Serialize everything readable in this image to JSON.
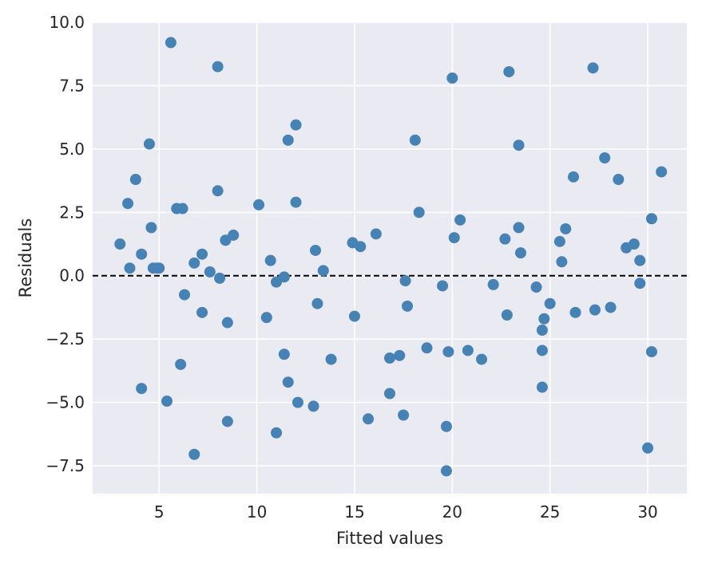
{
  "chart_data": {
    "type": "scatter",
    "title": "",
    "xlabel": "Fitted values",
    "ylabel": "Residuals",
    "xlim": [
      1.6,
      32.0
    ],
    "ylim": [
      -8.6,
      10.0
    ],
    "xticks": [
      5,
      10,
      15,
      20,
      25,
      30
    ],
    "yticks": [
      -7.5,
      -5.0,
      -2.5,
      0.0,
      2.5,
      5.0,
      7.5,
      10.0
    ],
    "xtick_labels": [
      "5",
      "10",
      "15",
      "20",
      "25",
      "30"
    ],
    "ytick_labels": [
      "−7.5",
      "−5.0",
      "−2.5",
      "0.0",
      "2.5",
      "5.0",
      "7.5",
      "10.0"
    ],
    "grid": true,
    "reference_line": {
      "y": 0,
      "style": "dashed",
      "color": "#000000"
    },
    "colors": {
      "background": "#eaeaf2",
      "grid": "#ffffff",
      "marker": "#4682b4"
    },
    "series": [
      {
        "x": [
          3.0,
          3.4,
          3.5,
          3.8,
          4.1,
          4.1,
          4.5,
          4.6,
          4.7,
          4.9,
          5.0,
          5.4,
          5.6,
          5.9,
          6.1,
          6.2,
          6.3,
          6.8,
          6.8,
          7.2,
          7.2,
          7.6,
          8.0,
          8.0,
          8.1,
          8.4,
          8.5,
          8.5,
          8.8,
          10.1,
          10.5,
          10.7,
          11.0,
          11.0,
          11.4,
          11.4,
          11.6,
          11.6,
          12.0,
          12.0,
          12.1,
          12.9,
          13.0,
          13.1,
          13.4,
          13.8,
          14.9,
          15.0,
          15.3,
          15.7,
          16.1,
          16.8,
          16.8,
          17.3,
          17.5,
          17.6,
          17.7,
          18.1,
          18.3,
          18.7,
          19.5,
          19.7,
          19.7,
          19.8,
          20.0,
          20.1,
          20.4,
          20.8,
          21.5,
          22.1,
          22.7,
          22.8,
          22.9,
          23.4,
          23.4,
          23.5,
          24.3,
          24.6,
          24.6,
          24.6,
          24.7,
          25.0,
          25.5,
          25.6,
          25.8,
          26.2,
          26.3,
          27.2,
          27.3,
          27.8,
          28.1,
          28.5,
          28.9,
          29.3,
          29.6,
          29.6,
          30.0,
          30.2,
          30.2,
          30.7
        ],
        "y": [
          1.25,
          2.85,
          0.3,
          3.8,
          -4.45,
          0.85,
          5.2,
          1.9,
          0.3,
          0.3,
          0.3,
          -4.95,
          9.2,
          2.65,
          -3.5,
          2.65,
          -0.75,
          0.5,
          -7.05,
          0.85,
          -1.45,
          0.15,
          8.25,
          3.35,
          -0.1,
          1.4,
          -1.85,
          -5.75,
          1.6,
          2.8,
          -1.65,
          0.6,
          -0.25,
          -6.2,
          -3.1,
          -0.05,
          -4.2,
          5.35,
          5.95,
          2.9,
          -5.0,
          -5.15,
          1.0,
          -1.1,
          0.2,
          -3.3,
          1.3,
          -1.6,
          1.15,
          -5.65,
          1.65,
          -3.25,
          -4.65,
          -3.15,
          -5.5,
          -0.2,
          -1.2,
          5.35,
          2.5,
          -2.85,
          -0.4,
          -7.7,
          -5.95,
          -3.0,
          7.8,
          1.5,
          2.2,
          -2.95,
          -3.3,
          -0.35,
          1.45,
          -1.55,
          8.05,
          5.15,
          1.9,
          0.9,
          -0.45,
          -2.15,
          -2.95,
          -4.4,
          -1.7,
          -1.1,
          1.35,
          0.55,
          1.85,
          3.9,
          -1.45,
          8.2,
          -1.35,
          4.65,
          -1.25,
          3.8,
          1.1,
          1.25,
          -0.3,
          0.6,
          -6.8,
          -3.0,
          2.25,
          4.1
        ]
      }
    ]
  }
}
